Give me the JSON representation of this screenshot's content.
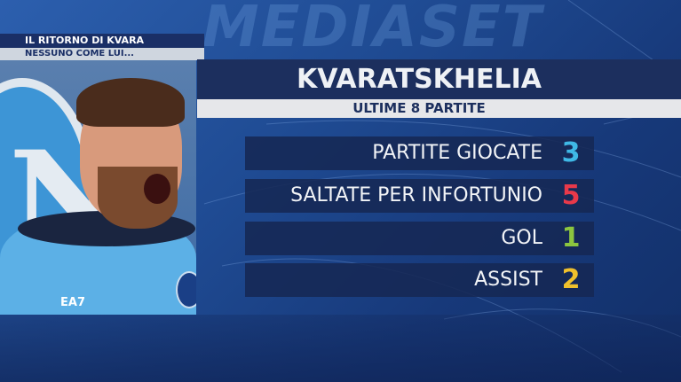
{
  "watermark": "MEDIASET",
  "header": {
    "line1": "IL RITORNO DI KVARA",
    "line2": "NESSUNO COME LUI..."
  },
  "photo": {
    "shirt_text": "EA7"
  },
  "panel": {
    "title": "KVARATSKHELIA",
    "subtitle": "ULTIME 8 PARTITE",
    "stats": [
      {
        "label": "PARTITE GIOCATE",
        "value": "3",
        "color": "#3fb9e6"
      },
      {
        "label": "SALTATE PER INFORTUNIO",
        "value": "5",
        "color": "#e8394a"
      },
      {
        "label": "GOL",
        "value": "1",
        "color": "#8cc63f"
      },
      {
        "label": "ASSIST",
        "value": "2",
        "color": "#f0c02c"
      }
    ]
  }
}
